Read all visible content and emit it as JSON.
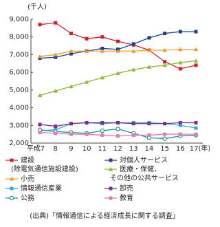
{
  "chart_data": {
    "type": "line",
    "unit_label": "(千人)",
    "categories": [
      "平成7",
      "8",
      "9",
      "10",
      "11",
      "12",
      "13",
      "14",
      "15",
      "16",
      "17(年)"
    ],
    "ylim": [
      2000,
      9000
    ],
    "yticks": [
      {
        "value": 2000,
        "label": "2,000"
      },
      {
        "value": 3000,
        "label": "3,000"
      },
      {
        "value": 4000,
        "label": "4,000"
      },
      {
        "value": 5000,
        "label": "5,000"
      },
      {
        "value": 6000,
        "label": "6,000"
      },
      {
        "value": 7000,
        "label": "7,000"
      },
      {
        "value": 8000,
        "label": "8,000"
      },
      {
        "value": 9000,
        "label": "9,000"
      }
    ],
    "series": [
      {
        "name": "建設\n(除電気通信施設建設)",
        "color": "#d81c24",
        "marker": "square",
        "values": [
          8700,
          8800,
          8200,
          7900,
          8000,
          7750,
          7550,
          7250,
          6600,
          6200,
          6400
        ]
      },
      {
        "name": "対個人サービス",
        "color": "#1f3f8f",
        "marker": "square",
        "values": [
          6800,
          6850,
          7050,
          7200,
          7350,
          7300,
          7600,
          7950,
          8200,
          8300,
          8300
        ]
      },
      {
        "name": "小売",
        "color": "#f29a2e",
        "marker": "triangle",
        "values": [
          6900,
          7000,
          7200,
          7200,
          7200,
          7200,
          7200,
          7250,
          7250,
          7300,
          7300
        ]
      },
      {
        "name": "医療・保健、\nその他の公共サービス",
        "color": "#8cb83a",
        "marker": "triangle",
        "values": [
          4700,
          4950,
          5200,
          5450,
          5700,
          5950,
          6150,
          6300,
          6400,
          6550,
          6650
        ]
      },
      {
        "name": "情報通信産業",
        "color": "#31a9d8",
        "marker": "square",
        "values": [
          2700,
          2750,
          3100,
          3150,
          3100,
          3150,
          3150,
          3150,
          3100,
          3000,
          2850
        ]
      },
      {
        "name": "卸売",
        "color": "#7a2f8f",
        "marker": "square",
        "values": [
          3050,
          2950,
          3100,
          3150,
          3150,
          3150,
          3100,
          3100,
          3100,
          3150,
          3150
        ]
      },
      {
        "name": "公務",
        "color": "#1f8f8a",
        "marker": "circle",
        "values": [
          2750,
          2650,
          2600,
          2550,
          2700,
          2800,
          2550,
          2300,
          2250,
          2400,
          2450
        ]
      },
      {
        "name": "教育",
        "color": "#e07ab0",
        "marker": "square",
        "values": [
          2600,
          2550,
          2500,
          2500,
          2450,
          2400,
          2450,
          2450,
          2500,
          2500,
          2500
        ]
      }
    ],
    "source": "(出典)「情報通信による経済成長に関する調査」"
  }
}
